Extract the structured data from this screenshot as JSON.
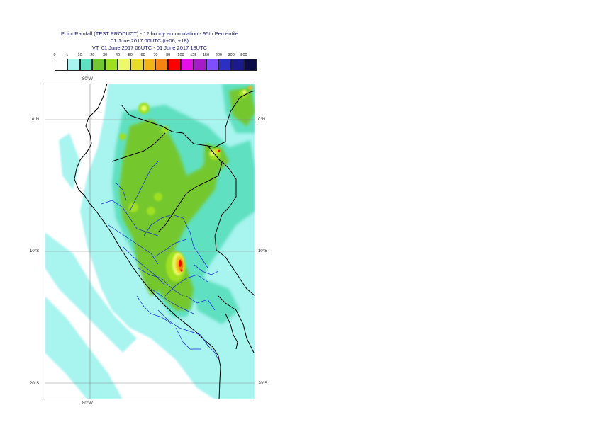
{
  "title": {
    "line1": "Point Rainfall (TEST PRODUCT) - 12 hourly accumulation - 95th Percentile",
    "line2": "01 June 2017 00UTC (t+06,t+18)",
    "line3": "VT: 01 June 2017 06UTC - 01 June 2017 18UTC"
  },
  "legend": {
    "thresholds": [
      "0",
      "1",
      "10",
      "20",
      "30",
      "40",
      "50",
      "60",
      "70",
      "80",
      "100",
      "125",
      "150",
      "200",
      "300",
      "500"
    ],
    "colors": [
      "#ffffff",
      "#a8f4ef",
      "#5fe0c0",
      "#74c72e",
      "#9ee020",
      "#ecfa6a",
      "#e8dc2a",
      "#f2b417",
      "#f58410",
      "#ff0000",
      "#e510e5",
      "#a31cc8",
      "#7e4fff",
      "#2d2fc4",
      "#1a1a8c",
      "#0b0b45"
    ]
  },
  "axes": {
    "top_lon": "80°W",
    "bottom_lon": "80°W",
    "left_lat": [
      "0°N",
      "10°S",
      "20°S"
    ],
    "right_lat": [
      "0°N",
      "10°S",
      "20°S"
    ]
  }
}
